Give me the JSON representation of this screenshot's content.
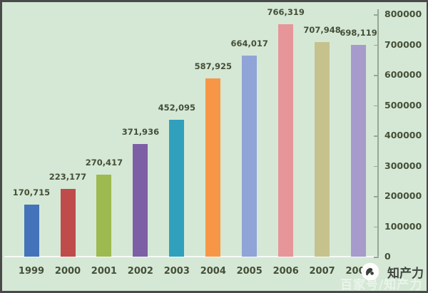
{
  "chart_data": {
    "type": "bar",
    "title": "",
    "xlabel": "",
    "ylabel": "",
    "categories": [
      "1999",
      "2000",
      "2001",
      "2002",
      "2003",
      "2004",
      "2005",
      "2006",
      "2007",
      "2008"
    ],
    "values": [
      170715,
      223177,
      270417,
      371936,
      452095,
      587925,
      664017,
      766319,
      707948,
      698119
    ],
    "value_labels": [
      "170,715",
      "223,177",
      "270,417",
      "371,936",
      "452,095",
      "587,925",
      "664,017",
      "766,319",
      "707,948",
      "698,119"
    ],
    "bar_colors": [
      "#4573b9",
      "#bf4c4a",
      "#9cba4f",
      "#7d5fa5",
      "#31a0bc",
      "#f79646",
      "#91a4d8",
      "#e69698",
      "#c6c28e",
      "#a79bcb"
    ],
    "ylim": [
      0,
      800000
    ],
    "y_ticks": [
      0,
      100000,
      200000,
      300000,
      400000,
      500000,
      600000,
      700000,
      800000
    ],
    "y_tick_labels": [
      "0",
      "100000",
      "200000",
      "300000",
      "400000",
      "500000",
      "600000",
      "700000",
      "800000"
    ],
    "y_axis_side": "right",
    "grid": false,
    "legend": "none",
    "plot_background": "#d4e8d5"
  },
  "watermark": {
    "logo": "panda-circle-logo",
    "brand_text": "知产力",
    "overlay_text": "百家号/知产力"
  },
  "colors": {
    "background": "#d4e8d5",
    "frame": "#4a4a4a",
    "axis": "#97a795",
    "label_text": "#454f38"
  }
}
